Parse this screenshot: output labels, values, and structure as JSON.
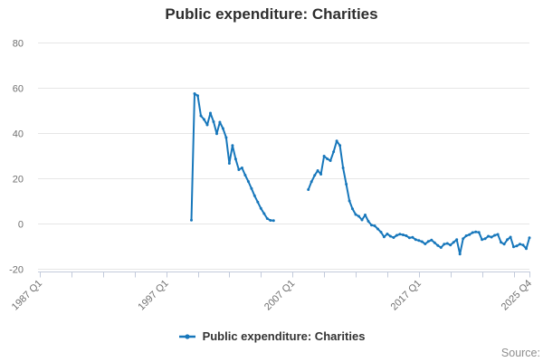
{
  "title": "Public expenditure: Charities",
  "legend": {
    "items": [
      {
        "label": "Public expenditure: Charities"
      }
    ]
  },
  "source_label": "Source:",
  "colors": {
    "line": "#1777bb",
    "grid": "#e6e6e6",
    "axis": "#c2cadb",
    "tick_text": "#707070",
    "title_text": "#2e2e2e",
    "legend_text": "#333333",
    "source_text": "#8e8e8e",
    "background": "#ffffff"
  },
  "chart_data": {
    "type": "line",
    "title": "Public expenditure: Charities",
    "grid": true,
    "legend_position": "bottom-center",
    "x_axis": {
      "unit": "quarter",
      "start": "1987 Q1",
      "end": "2025 Q4",
      "total_quarters": 155,
      "minor_tick_every_quarters": 10,
      "major_labels": [
        {
          "quarter_index": 0,
          "label": "1987 Q1"
        },
        {
          "quarter_index": 40,
          "label": "1997 Q1"
        },
        {
          "quarter_index": 80,
          "label": "2007 Q1"
        },
        {
          "quarter_index": 120,
          "label": "2017 Q1"
        },
        {
          "quarter_index": 155,
          "label": "2025 Q4"
        }
      ]
    },
    "y_axis": {
      "min": -20,
      "max": 80,
      "ticks": [
        80,
        60,
        40,
        20,
        0,
        -20
      ]
    },
    "series": [
      {
        "name": "Public expenditure: Charities",
        "color": "#1777bb",
        "segments": [
          {
            "start_period": "1999 Q1",
            "start_quarter_index": 48,
            "values": [
              1.5,
              57.4,
              56.5,
              47.6,
              46,
              43.6,
              48.8,
              45,
              39.7,
              44.8,
              42,
              38,
              26.6,
              34.5,
              28.5,
              23.8,
              24.6,
              21.4,
              18.6,
              15.5,
              12.3,
              9.5,
              6.7,
              4.4,
              2.2,
              1.4,
              1.3
            ]
          },
          {
            "start_period": "2008 Q2",
            "start_quarter_index": 85,
            "values": [
              15,
              18.5,
              21.3,
              23.4,
              21.8,
              29.8,
              28.6,
              27.8,
              31.7,
              36.5,
              34.5,
              24.6,
              17.4,
              10,
              6.5,
              4,
              3.2,
              1.6,
              3.8,
              1,
              -0.7,
              -1,
              -2.4,
              -3.8,
              -5.9,
              -4.6,
              -5.6,
              -6.2,
              -5.2,
              -4.7,
              -5,
              -5.4,
              -6.3,
              -6.1,
              -7.1,
              -7.5,
              -8,
              -9,
              -7.9,
              -7.3,
              -8.5,
              -9.7,
              -10.6,
              -9.1,
              -8.8,
              -9.5,
              -8.3,
              -7.1,
              -13.5,
              -6.7,
              -5.4,
              -4.9,
              -4,
              -3.7,
              -3.9,
              -7.1,
              -6.7,
              -5.6,
              -6,
              -5.2,
              -4.8,
              -8.3,
              -9.1,
              -7.1,
              -6,
              -10.3,
              -9.9,
              -9.1,
              -9.5,
              -11.1,
              -6.3
            ]
          }
        ]
      }
    ]
  }
}
